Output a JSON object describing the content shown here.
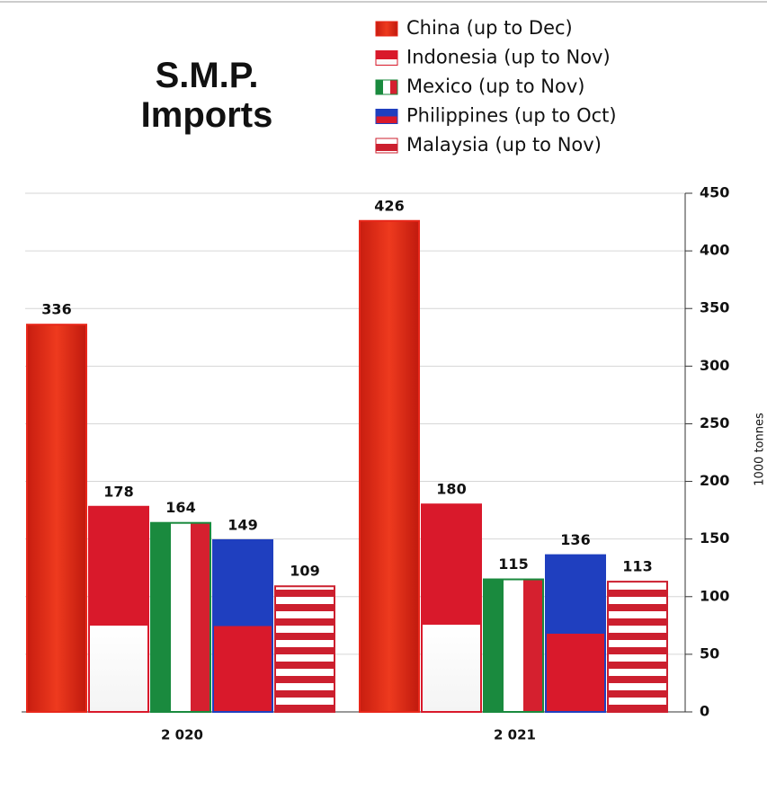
{
  "chart_data": {
    "type": "bar",
    "title": "S.M.P. Imports",
    "categories": [
      "2 020",
      "2 021"
    ],
    "series": [
      {
        "name": "China (up to Dec)",
        "color": "#e8271a",
        "values": [
          336,
          426
        ]
      },
      {
        "name": "Indonesia (up to Nov)",
        "color": "#d9192b",
        "values": [
          178,
          180
        ]
      },
      {
        "name": "Mexico (up to Nov)",
        "color": "#1a8a3e",
        "values": [
          164,
          115
        ]
      },
      {
        "name": "Philippines (up to Oct)",
        "color": "#1f3fbf",
        "values": [
          149,
          136
        ]
      },
      {
        "name": "Malaysia (up to Nov)",
        "color": "#cc1f2e",
        "values": [
          109,
          113
        ]
      }
    ],
    "y_label": "1000 tonnes",
    "ylim": [
      0,
      450
    ],
    "yticks": [
      0,
      50,
      100,
      150,
      200,
      250,
      300,
      350,
      400,
      450
    ],
    "grid": true,
    "y_axis_side": "right",
    "legend": "top-right"
  }
}
